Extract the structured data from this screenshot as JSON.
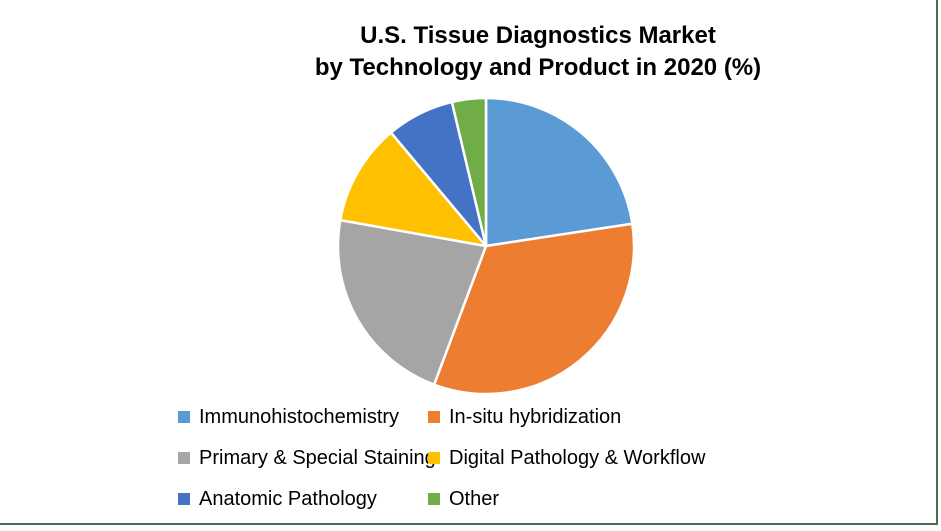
{
  "chart_data": {
    "type": "pie",
    "title_line1": "U.S. Tissue Diagnostics Market",
    "title_line2": "by Technology and Product in 2020 (%)",
    "start_angle_deg": 0,
    "direction": "clockwise",
    "legend_position": "bottom",
    "legend_layout": "3 rows x 2 columns",
    "background_color": "#FFFFFF",
    "slice_separator_color": "#FFFFFF",
    "slices": [
      {
        "label": "Immunohistochemistry",
        "value": 22.6,
        "color": "#5B9BD5"
      },
      {
        "label": "In-situ hybridization",
        "value": 33.1,
        "color": "#ED7D31"
      },
      {
        "label": "Primary & Special Staining",
        "value": 22.1,
        "color": "#A5A5A5"
      },
      {
        "label": "Digital Pathology & Workflow",
        "value": 11.1,
        "color": "#FFC000"
      },
      {
        "label": "Anatomic Pathology",
        "value": 7.4,
        "color": "#4472C4"
      },
      {
        "label": "Other",
        "value": 3.7,
        "color": "#70AD47"
      }
    ]
  },
  "frame": {
    "border_color": "#4A6B52"
  }
}
